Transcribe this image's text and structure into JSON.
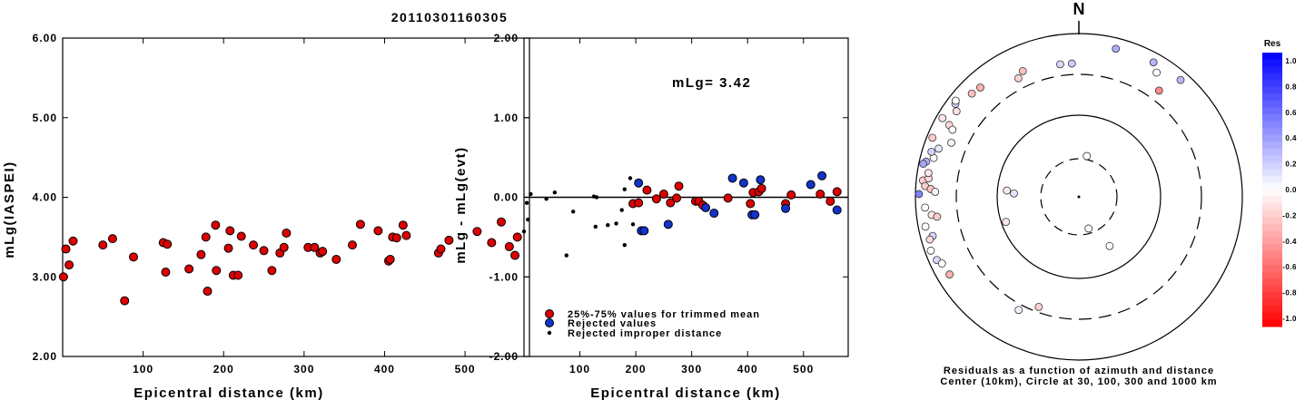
{
  "title": "20110301160305",
  "chart_data": [
    {
      "type": "scatter",
      "xlabel": "Epicentral distance (km)",
      "ylabel": "mLg(IASPEI)",
      "xlim": [
        0,
        580
      ],
      "ylim": [
        2.0,
        6.0
      ],
      "xticks": [
        "100",
        "200",
        "300",
        "400",
        "500"
      ],
      "yticks": [
        "2.00",
        "3.00",
        "4.00",
        "5.00",
        "6.00"
      ],
      "series": [
        {
          "color": "#dd0000",
          "points": [
            [
              1,
              3.0
            ],
            [
              4,
              3.35
            ],
            [
              8,
              3.15
            ],
            [
              13,
              3.45
            ],
            [
              50,
              3.4
            ],
            [
              62,
              3.48
            ],
            [
              77,
              2.7
            ],
            [
              88,
              3.25
            ],
            [
              125,
              3.43
            ],
            [
              128,
              3.06
            ],
            [
              130,
              3.41
            ],
            [
              157,
              3.1
            ],
            [
              172,
              3.28
            ],
            [
              178,
              3.5
            ],
            [
              180,
              2.82
            ],
            [
              190,
              3.65
            ],
            [
              191,
              3.08
            ],
            [
              206,
              3.36
            ],
            [
              208,
              3.58
            ],
            [
              212,
              3.02
            ],
            [
              218,
              3.02
            ],
            [
              222,
              3.51
            ],
            [
              237,
              3.4
            ],
            [
              250,
              3.33
            ],
            [
              260,
              3.08
            ],
            [
              270,
              3.3
            ],
            [
              275,
              3.37
            ],
            [
              278,
              3.55
            ],
            [
              305,
              3.37
            ],
            [
              313,
              3.37
            ],
            [
              320,
              3.3
            ],
            [
              323,
              3.32
            ],
            [
              340,
              3.22
            ],
            [
              360,
              3.4
            ],
            [
              370,
              3.66
            ],
            [
              392,
              3.58
            ],
            [
              405,
              3.2
            ],
            [
              407,
              3.22
            ],
            [
              410,
              3.5
            ],
            [
              415,
              3.49
            ],
            [
              423,
              3.65
            ],
            [
              427,
              3.52
            ],
            [
              467,
              3.3
            ],
            [
              470,
              3.35
            ],
            [
              480,
              3.46
            ],
            [
              515,
              3.57
            ],
            [
              533,
              3.43
            ],
            [
              545,
              3.69
            ],
            [
              555,
              3.38
            ],
            [
              562,
              3.27
            ],
            [
              565,
              3.5
            ]
          ]
        }
      ]
    },
    {
      "type": "scatter",
      "xlabel": "Epicentral distance (km)",
      "ylabel": "mLg - mLg(evt)",
      "xlim": [
        0,
        580
      ],
      "ylim": [
        -2.0,
        2.0
      ],
      "xticks": [
        "100",
        "200",
        "300",
        "400",
        "500"
      ],
      "yticks": [
        "-2.00",
        "-1.00",
        "0.00",
        "1.00",
        "2.00"
      ],
      "annotation": "mLg= 3.42",
      "reference_line": 0.0,
      "legend": {
        "placement": "bottom-left",
        "entries": [
          "25%-75% values for trimmed mean",
          "Rejected values",
          "Rejected improper distance"
        ]
      },
      "series": [
        {
          "name": "25%-75% values for trimmed mean",
          "color": "#dd0000",
          "points": [
            [
              195,
              -0.08
            ],
            [
              205,
              -0.07
            ],
            [
              220,
              0.09
            ],
            [
              237,
              -0.02
            ],
            [
              250,
              0.04
            ],
            [
              262,
              -0.07
            ],
            [
              273,
              -0.01
            ],
            [
              277,
              0.14
            ],
            [
              307,
              -0.05
            ],
            [
              313,
              -0.05
            ],
            [
              320,
              -0.1
            ],
            [
              365,
              -0.01
            ],
            [
              405,
              -0.08
            ],
            [
              410,
              0.06
            ],
            [
              420,
              0.07
            ],
            [
              425,
              0.11
            ],
            [
              468,
              -0.08
            ],
            [
              478,
              0.03
            ],
            [
              530,
              0.04
            ],
            [
              548,
              -0.05
            ],
            [
              560,
              0.07
            ]
          ]
        },
        {
          "name": "Rejected values",
          "color": "#1133cc",
          "points": [
            [
              205,
              0.18
            ],
            [
              210,
              -0.42
            ],
            [
              215,
              -0.42
            ],
            [
              258,
              -0.34
            ],
            [
              325,
              -0.13
            ],
            [
              340,
              -0.2
            ],
            [
              373,
              0.24
            ],
            [
              393,
              0.18
            ],
            [
              408,
              -0.22
            ],
            [
              413,
              -0.22
            ],
            [
              423,
              0.22
            ],
            [
              468,
              -0.14
            ],
            [
              513,
              0.16
            ],
            [
              533,
              0.27
            ],
            [
              560,
              -0.16
            ]
          ]
        },
        {
          "name": "Rejected improper distance",
          "color": "#000000",
          "points": [
            [
              0,
              -0.43
            ],
            [
              5,
              -0.07
            ],
            [
              7,
              -0.28
            ],
            [
              12,
              0.04
            ],
            [
              40,
              -0.02
            ],
            [
              55,
              0.06
            ],
            [
              76,
              -0.73
            ],
            [
              88,
              -0.18
            ],
            [
              125,
              0.01
            ],
            [
              128,
              -0.37
            ],
            [
              130,
              0.0
            ],
            [
              150,
              -0.35
            ],
            [
              165,
              -0.33
            ],
            [
              175,
              -0.16
            ],
            [
              180,
              0.1
            ],
            [
              180,
              -0.6
            ],
            [
              190,
              0.24
            ],
            [
              195,
              -0.34
            ]
          ]
        }
      ]
    },
    {
      "type": "scatter",
      "polar": true,
      "north_label": "N",
      "caption_line1": "Residuals as a function of azimuth and distance",
      "caption_line2": "Center (10km), Circle at 30, 100, 300 and 1000 km",
      "colorbar": {
        "title": "Res",
        "ticks": [
          "1.0",
          "0.8",
          "0.6",
          "0.4",
          "0.2",
          "0.0",
          "-0.2",
          "-0.4",
          "-0.6",
          "-0.8",
          "-1.0"
        ],
        "range": [
          -1.0,
          1.0
        ],
        "positive_color": "#0000ff",
        "negative_color": "#ff0000"
      },
      "rings_km": [
        10,
        30,
        100,
        300,
        1000
      ],
      "stations": [
        {
          "az": 148,
          "dist_km": 52,
          "res": 0.0
        },
        {
          "az": 163,
          "dist_km": 26,
          "res": -0.02
        },
        {
          "az": 11,
          "dist_km": 33,
          "res": 0.0
        },
        {
          "az": 273,
          "dist_km": 63,
          "res": 0.1
        },
        {
          "az": 275,
          "dist_km": 77,
          "res": -0.07
        },
        {
          "az": 251,
          "dist_km": 88,
          "res": -0.08
        },
        {
          "az": 200,
          "dist_km": 260,
          "res": -0.18
        },
        {
          "az": 208,
          "dist_km": 355,
          "res": 0.05
        },
        {
          "az": 37,
          "dist_km": 410,
          "res": -0.45
        },
        {
          "az": 357,
          "dist_km": 415,
          "res": 0.2
        },
        {
          "az": 352,
          "dist_km": 420,
          "res": 0.15
        },
        {
          "az": 32,
          "dist_km": 610,
          "res": 0.0
        },
        {
          "az": 14,
          "dist_km": 730,
          "res": 0.32
        },
        {
          "az": 29,
          "dist_km": 755,
          "res": 0.3
        },
        {
          "az": 41,
          "dist_km": 780,
          "res": 0.28
        },
        {
          "az": 333,
          "dist_km": 410,
          "res": -0.18
        },
        {
          "az": 336,
          "dist_km": 470,
          "res": -0.25
        },
        {
          "az": 318,
          "dist_km": 620,
          "res": -0.3
        },
        {
          "az": 314,
          "dist_km": 650,
          "res": -0.25
        },
        {
          "az": 305,
          "dist_km": 660,
          "res": -0.12
        },
        {
          "az": 307,
          "dist_km": 770,
          "res": 0.2
        },
        {
          "az": 299,
          "dist_km": 640,
          "res": -0.15
        },
        {
          "az": 298,
          "dist_km": 550,
          "res": 0.0
        },
        {
          "az": 293,
          "dist_km": 480,
          "res": 0.05
        },
        {
          "az": 289,
          "dist_km": 640,
          "res": 0.1
        },
        {
          "az": 285,
          "dist_km": 680,
          "res": 0.0
        },
        {
          "az": 287,
          "dist_km": 760,
          "res": 0.18
        },
        {
          "az": 283,
          "dist_km": 820,
          "res": 0.3
        },
        {
          "az": 282,
          "dist_km": 880,
          "res": 0.35
        },
        {
          "az": 276,
          "dist_km": 820,
          "res": -0.2
        },
        {
          "az": 277,
          "dist_km": 700,
          "res": -0.15
        },
        {
          "az": 274,
          "dist_km": 760,
          "res": -0.2
        },
        {
          "az": 273,
          "dist_km": 640,
          "res": -0.22
        },
        {
          "az": 272,
          "dist_km": 560,
          "res": 0.05
        },
        {
          "az": 279,
          "dist_km": 720,
          "res": -0.1
        },
        {
          "az": 271,
          "dist_km": 900,
          "res": 0.5
        },
        {
          "az": 266,
          "dist_km": 760,
          "res": 0.0
        },
        {
          "az": 263,
          "dist_km": 640,
          "res": -0.1
        },
        {
          "az": 262,
          "dist_km": 550,
          "res": -0.2
        },
        {
          "az": 259,
          "dist_km": 810,
          "res": 0.0
        },
        {
          "az": 255,
          "dist_km": 700,
          "res": 0.15
        },
        {
          "az": 254,
          "dist_km": 780,
          "res": -0.15
        },
        {
          "az": 250,
          "dist_km": 840,
          "res": 0.0
        },
        {
          "az": 246,
          "dist_km": 790,
          "res": 0.15
        },
        {
          "az": 244,
          "dist_km": 720,
          "res": 0.0
        },
        {
          "az": 239,
          "dist_km": 690,
          "res": -0.3
        },
        {
          "az": 292,
          "dist_km": 850,
          "res": -0.2
        },
        {
          "az": 300,
          "dist_km": 840,
          "res": -0.1
        },
        {
          "az": 308,
          "dist_km": 810,
          "res": 0.0
        }
      ]
    }
  ]
}
